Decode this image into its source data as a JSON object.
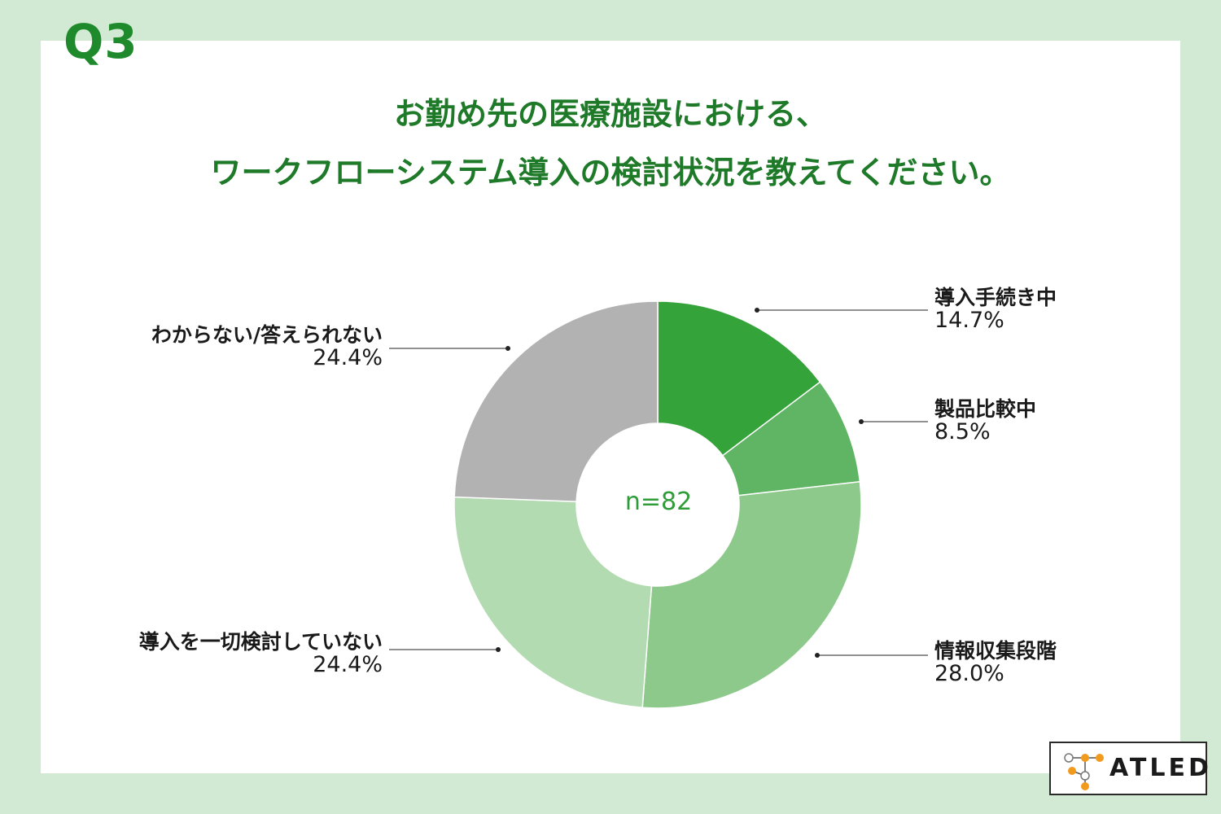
{
  "question": "Q3",
  "title_line1": "お勤め先の医療施設における、",
  "title_line2": "ワークフローシステム導入の検討状況を教えてください。",
  "brand": "ATLED",
  "chart_data": {
    "type": "pie",
    "donut": true,
    "center_label": "n=82",
    "slices": [
      {
        "label": "導入手続き中",
        "value": 14.7,
        "value_label": "14.7%",
        "color": "#34a33a"
      },
      {
        "label": "製品比較中",
        "value": 8.5,
        "value_label": "8.5%",
        "color": "#5fb563"
      },
      {
        "label": "情報収集段階",
        "value": 28.0,
        "value_label": "28.0%",
        "color": "#8ec98c"
      },
      {
        "label": "導入を一切検討していない",
        "value": 24.4,
        "value_label": "24.4%",
        "color": "#b3dbb1"
      },
      {
        "label": "わからない/答えられない",
        "value": 24.4,
        "value_label": "24.4%",
        "color": "#b2b2b2"
      }
    ]
  }
}
